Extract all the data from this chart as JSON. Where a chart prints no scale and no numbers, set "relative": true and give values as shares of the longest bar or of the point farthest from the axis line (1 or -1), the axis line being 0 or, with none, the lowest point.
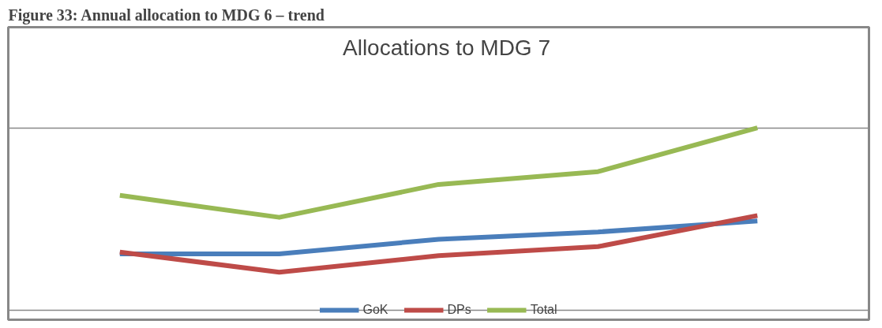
{
  "chart_data": {
    "type": "line",
    "relative": true,
    "title": "Allocations to MDG 7",
    "annotations": [
      "Figure 33: Annual allocation to MDG 6 – trend"
    ],
    "categories": [
      null,
      null,
      null,
      null,
      null
    ],
    "series": [
      {
        "name": "GoK",
        "color": "#4a7ebb",
        "values": [
          0.31,
          0.31,
          0.39,
          0.43,
          0.49
        ]
      },
      {
        "name": "DPs",
        "color": "#be4b48",
        "values": [
          0.32,
          0.21,
          0.3,
          0.35,
          0.52
        ]
      },
      {
        "name": "Total",
        "color": "#98b954",
        "values": [
          0.63,
          0.51,
          0.69,
          0.76,
          1.0
        ]
      }
    ],
    "legend": "bottom",
    "grid": "y",
    "marker": "none",
    "line_style": "solid"
  }
}
